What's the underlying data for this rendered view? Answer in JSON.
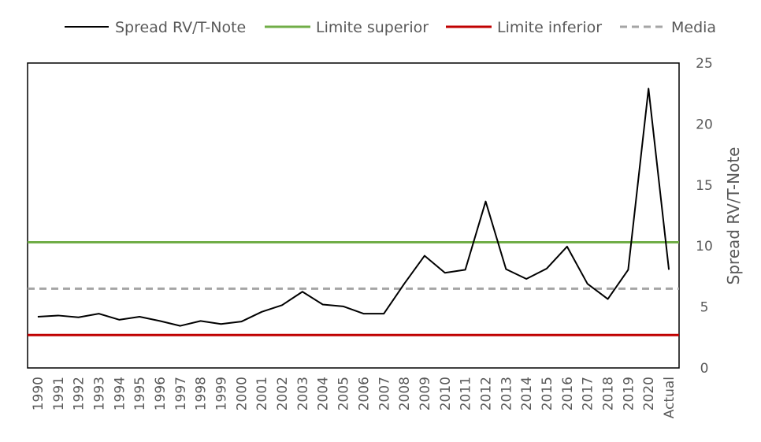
{
  "chart_data": {
    "type": "line",
    "title": "",
    "xlabel": "",
    "ylabel": "Spread RV/T-Note",
    "ylim": [
      0,
      25
    ],
    "y_ticks": [
      0,
      5,
      10,
      15,
      20,
      25
    ],
    "y_axis_side": "right",
    "grid": false,
    "legend_position": "top",
    "categories": [
      "1990",
      "1991",
      "1992",
      "1993",
      "1994",
      "1995",
      "1996",
      "1997",
      "1998",
      "1999",
      "2000",
      "2001",
      "2002",
      "2003",
      "2004",
      "2005",
      "2006",
      "2007",
      "2008",
      "2009",
      "2010",
      "2011",
      "2012",
      "2013",
      "2014",
      "2015",
      "2016",
      "2017",
      "2018",
      "2019",
      "2020",
      "Actual"
    ],
    "series": [
      {
        "name": "Spread RV/T-Note",
        "color": "#000000",
        "style": "solid",
        "values": [
          4.2,
          4.3,
          4.15,
          4.45,
          3.95,
          4.2,
          3.85,
          3.45,
          3.85,
          3.6,
          3.8,
          4.6,
          5.15,
          6.25,
          5.2,
          5.05,
          4.45,
          4.45,
          6.9,
          9.2,
          7.8,
          8.05,
          13.65,
          8.1,
          7.3,
          8.15,
          9.95,
          6.9,
          5.65,
          8.05,
          22.9,
          8.05
        ]
      },
      {
        "name": "Limite superior",
        "color": "#70ad47",
        "style": "solid",
        "constant": 10.3
      },
      {
        "name": "Limite inferior",
        "color": "#c00000",
        "style": "solid",
        "constant": 2.7
      },
      {
        "name": "Media",
        "color": "#a5a5a5",
        "style": "dashed",
        "constant": 6.5
      }
    ]
  }
}
